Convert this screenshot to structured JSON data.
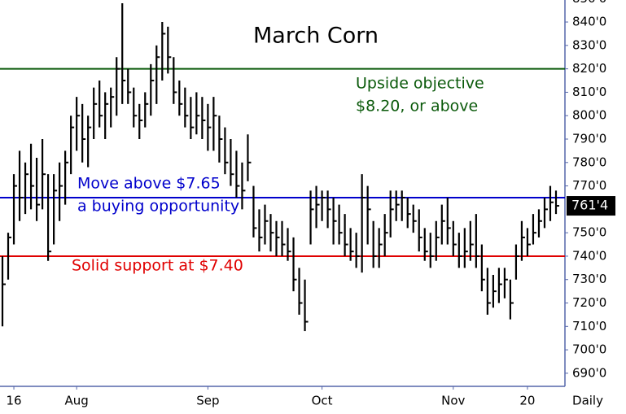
{
  "chart_data": {
    "type": "ohlc",
    "title": "March Corn",
    "high": [
      740,
      750,
      775,
      785,
      780,
      788,
      782,
      790,
      775,
      775,
      780,
      785,
      800,
      808,
      805,
      800,
      812,
      815,
      810,
      812,
      825,
      848,
      820,
      812,
      805,
      810,
      822,
      830,
      840,
      838,
      825,
      815,
      812,
      808,
      810,
      808,
      805,
      808,
      800,
      795,
      790,
      785,
      780,
      792,
      770,
      760,
      762,
      758,
      755,
      755,
      752,
      748,
      735,
      730,
      768,
      770,
      768,
      768,
      765,
      762,
      758,
      752,
      750,
      775,
      770,
      755,
      752,
      758,
      768,
      768,
      768,
      765,
      762,
      760,
      752,
      750,
      755,
      762,
      765,
      755,
      750,
      752,
      755,
      758,
      745,
      735,
      732,
      735,
      735,
      730,
      745,
      755,
      752,
      758,
      760,
      765,
      770,
      768
    ],
    "low": [
      710,
      730,
      745,
      755,
      758,
      760,
      755,
      760,
      738,
      745,
      755,
      762,
      775,
      785,
      780,
      778,
      790,
      795,
      790,
      795,
      800,
      805,
      805,
      795,
      790,
      795,
      800,
      805,
      815,
      818,
      805,
      800,
      795,
      790,
      792,
      790,
      785,
      785,
      780,
      775,
      770,
      765,
      760,
      772,
      748,
      742,
      745,
      742,
      740,
      740,
      738,
      725,
      715,
      708,
      745,
      752,
      755,
      752,
      745,
      745,
      740,
      738,
      735,
      733,
      745,
      735,
      735,
      740,
      748,
      755,
      755,
      752,
      750,
      742,
      738,
      735,
      738,
      745,
      745,
      740,
      735,
      735,
      738,
      735,
      725,
      715,
      718,
      720,
      722,
      713,
      730,
      738,
      740,
      745,
      748,
      752,
      755,
      758
    ],
    "close": [
      728,
      748,
      770,
      765,
      775,
      770,
      762,
      775,
      742,
      768,
      770,
      780,
      795,
      800,
      790,
      795,
      805,
      800,
      805,
      808,
      820,
      815,
      810,
      800,
      798,
      805,
      815,
      825,
      835,
      825,
      810,
      805,
      800,
      795,
      800,
      798,
      795,
      800,
      790,
      780,
      775,
      770,
      768,
      780,
      752,
      748,
      755,
      750,
      748,
      745,
      742,
      730,
      720,
      712,
      760,
      762,
      765,
      760,
      755,
      750,
      745,
      742,
      740,
      765,
      760,
      740,
      745,
      750,
      760,
      762,
      765,
      758,
      755,
      748,
      742,
      740,
      748,
      755,
      752,
      745,
      740,
      742,
      745,
      740,
      730,
      720,
      725,
      728,
      730,
      720,
      740,
      748,
      745,
      750,
      755,
      760,
      763,
      761.5
    ],
    "color": "#000000",
    "xticks": [
      {
        "value": 2,
        "label": "16"
      },
      {
        "value": 13,
        "label": "Aug"
      },
      {
        "value": 36,
        "label": "Sep"
      },
      {
        "value": 56,
        "label": "Oct"
      },
      {
        "value": 79,
        "label": "Nov"
      },
      {
        "value": 92,
        "label": "20"
      }
    ],
    "xlim": [
      -0.43,
      98.57
    ],
    "x_axis_label": "Daily",
    "ylim": [
      684.4,
      849.4
    ],
    "yticks": [
      {
        "value": 690,
        "label": "690'0"
      },
      {
        "value": 700,
        "label": "700'0"
      },
      {
        "value": 710,
        "label": "710'0"
      },
      {
        "value": 720,
        "label": "720'0"
      },
      {
        "value": 730,
        "label": "730'0"
      },
      {
        "value": 740,
        "label": "740'0"
      },
      {
        "value": 750,
        "label": "750'0"
      },
      {
        "value": 770,
        "label": "770'0"
      },
      {
        "value": 780,
        "label": "780'0"
      },
      {
        "value": 790,
        "label": "790'0"
      },
      {
        "value": 800,
        "label": "800'0"
      },
      {
        "value": 810,
        "label": "810'0"
      },
      {
        "value": 820,
        "label": "820'0"
      },
      {
        "value": 830,
        "label": "830'0"
      },
      {
        "value": 840,
        "label": "840'0"
      },
      {
        "value": 850,
        "label": "850'0"
      }
    ],
    "last_price": {
      "value": 761.5,
      "label": "761'4"
    },
    "hlines": [
      {
        "value": 820,
        "color": "#0b5a0b",
        "text": [
          "Upside objective",
          "$8.20, or above"
        ]
      },
      {
        "value": 765,
        "color": "#0000cc",
        "text": [
          "Move above $7.65",
          "a buying opportunity"
        ]
      },
      {
        "value": 740,
        "color": "#e00000",
        "text": [
          "Solid support at $7.40"
        ]
      }
    ]
  }
}
